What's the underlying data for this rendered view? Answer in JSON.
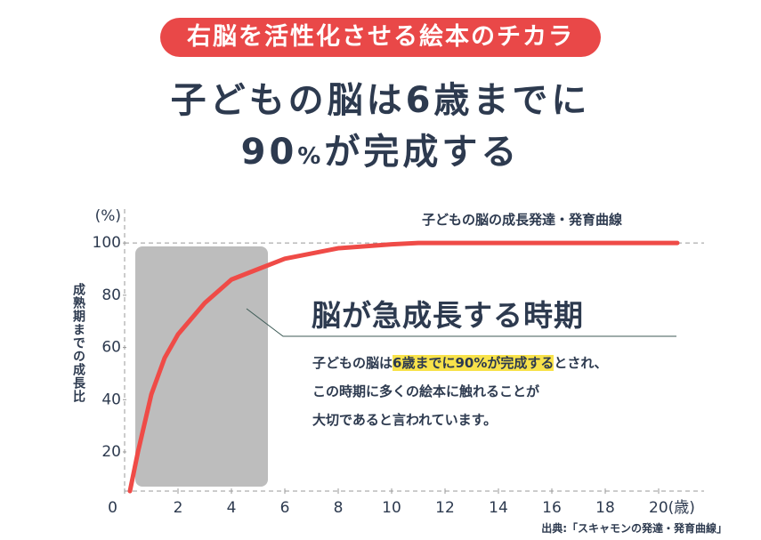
{
  "header": {
    "badge": "右脳を活性化させる絵本のチカラ",
    "title_line1": "子どもの脳は6歳までに",
    "title_line2": [
      "90",
      "%",
      "が完成する"
    ]
  },
  "chart_data": {
    "type": "line",
    "y_unit": "(%)",
    "y_label": "成熟期までの成長比",
    "series": [
      {
        "name": "子どもの脳の成長発達・発育曲線",
        "color": "#ef4b47",
        "x": [
          0.2,
          0.5,
          1,
          1.5,
          2,
          3,
          4,
          5,
          6,
          7,
          8,
          10,
          11,
          12,
          14,
          16,
          18,
          20,
          20.7
        ],
        "values": [
          5,
          20,
          42,
          56,
          65,
          77,
          86,
          90,
          94,
          96,
          98,
          99.5,
          100,
          100,
          100,
          100,
          100,
          100,
          100
        ]
      }
    ],
    "xlim": [
      0,
      21.7
    ],
    "ylim": [
      5,
      113
    ],
    "xticks": [
      0,
      2,
      4,
      6,
      8,
      10,
      12,
      14,
      16,
      18,
      {
        "value": 20,
        "label": "20(歳)"
      }
    ],
    "yticks": [
      20,
      40,
      60,
      80,
      100
    ],
    "annotation": {
      "heading": "脳が急成長する時期",
      "line1": [
        "子どもの脳は",
        "6歳までに90%が完成する",
        "とされ、"
      ],
      "line2": "この時期に多くの絵本に触れることが",
      "line3": "大切であると言われています。"
    },
    "source": "出典:「スキャモンの発達・発育曲線」"
  }
}
